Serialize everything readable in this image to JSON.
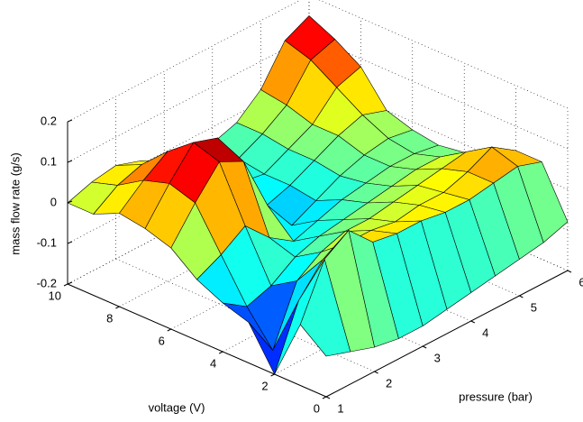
{
  "chart_data": {
    "type": "surface",
    "xlabel": "pressure (bar)",
    "ylabel": "voltage (V)",
    "zlabel": "mass flow rate (g/s)",
    "x": [
      1,
      1.5,
      2,
      2.5,
      3,
      3.5,
      4,
      4.5,
      5,
      5.5,
      6
    ],
    "y": [
      0,
      1,
      2,
      3,
      4,
      5,
      6,
      7,
      8,
      9,
      10
    ],
    "z": [
      [
        -0.1,
        -0.12,
        -0.14,
        -0.15,
        -0.15,
        -0.14,
        -0.13,
        -0.12,
        -0.11,
        -0.1,
        -0.08
      ],
      [
        -0.05,
        0.08,
        0.12,
        0.06,
        0.05,
        0.05,
        0.04,
        0.04,
        0.05,
        0.06,
        0.04
      ],
      [
        -0.2,
        -0.05,
        0.02,
        0.03,
        0.03,
        0.02,
        0.03,
        0.03,
        0.05,
        0.08,
        0.04
      ],
      [
        -0.1,
        -0.2,
        -0.06,
        -0.02,
        0.0,
        0.0,
        0.01,
        0.02,
        0.03,
        0.04,
        0.02
      ],
      [
        -0.08,
        -0.12,
        -0.1,
        -0.06,
        -0.04,
        -0.03,
        -0.02,
        -0.01,
        0.0,
        0.0,
        -0.02
      ],
      [
        -0.05,
        -0.02,
        0.02,
        -0.04,
        -0.08,
        -0.06,
        -0.04,
        -0.03,
        -0.02,
        -0.02,
        -0.03
      ],
      [
        0.0,
        0.08,
        0.15,
        0.12,
        -0.02,
        -0.1,
        -0.07,
        -0.04,
        -0.02,
        -0.01,
        -0.02
      ],
      [
        0.02,
        0.1,
        0.17,
        0.15,
        0.03,
        -0.08,
        -0.06,
        -0.03,
        0.0,
        0.02,
        0.0
      ],
      [
        0.03,
        0.08,
        0.12,
        0.1,
        0.04,
        -0.05,
        -0.06,
        -0.03,
        0.0,
        0.06,
        0.08
      ],
      [
        0.0,
        0.04,
        0.06,
        0.04,
        0.0,
        -0.04,
        -0.05,
        -0.02,
        0.02,
        0.1,
        0.12
      ],
      [
        0.0,
        0.02,
        0.03,
        0.01,
        -0.02,
        -0.03,
        -0.04,
        -0.02,
        0.03,
        0.12,
        0.15
      ]
    ],
    "xlim": [
      1,
      6
    ],
    "ylim": [
      0,
      10
    ],
    "zlim": [
      -0.2,
      0.2
    ],
    "xticks": [
      1,
      2,
      3,
      4,
      5,
      6
    ],
    "yticks": [
      0,
      2,
      4,
      6,
      8,
      10
    ],
    "zticks": [
      -0.2,
      -0.1,
      0,
      0.1,
      0.2
    ],
    "colormap": "jet",
    "edge_color": "#000000",
    "grid": true
  }
}
